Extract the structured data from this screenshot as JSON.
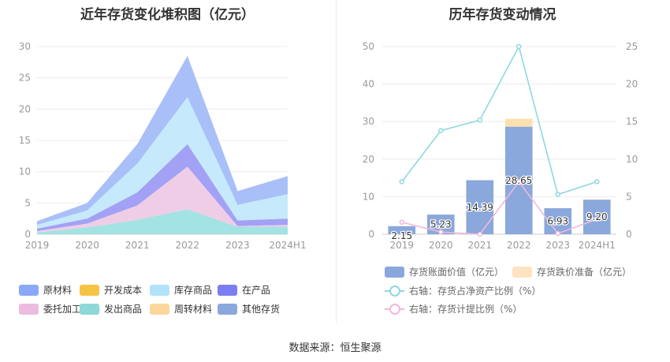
{
  "left_title": "近年存货变化堆积图（亿元）",
  "right_title": "历年存货变动情况",
  "footer": "数据来源：恒生聚源",
  "left_legend": [
    {
      "label": "原材料",
      "color": "#8aa8f5"
    },
    {
      "label": "开发成本",
      "color": "#f6c445"
    },
    {
      "label": "库存商品",
      "color": "#b3e3fa"
    },
    {
      "label": "在产品",
      "color": "#7b7ef0"
    },
    {
      "label": "委托加工材料",
      "color": "#ebbcdf"
    },
    {
      "label": "发出商品",
      "color": "#8fd8d8"
    },
    {
      "label": "周转材料",
      "color": "#fcd79b"
    },
    {
      "label": "其他存货",
      "color": "#8aa8dc"
    }
  ],
  "right_legend": [
    {
      "label": "存货账面价值（亿元）",
      "color": "#8aa8dc",
      "kind": "box"
    },
    {
      "label": "存货跌价准备（亿元）",
      "color": "#fde3c1",
      "kind": "box"
    },
    {
      "label": "右轴：存货占净资产比例（%）",
      "color": "#8fd8e0",
      "kind": "line"
    },
    {
      "label": "右轴：存货计提比例（%）",
      "color": "#f0b8dc",
      "kind": "line"
    }
  ],
  "chart_data": [
    {
      "type": "area",
      "stacked": true,
      "title": "近年存货变化堆积图（亿元）",
      "x": [
        "2019",
        "2020",
        "2021",
        "2022",
        "2023",
        "2024H1"
      ],
      "ylim": [
        0,
        30
      ],
      "yticks": [
        0,
        5,
        10,
        15,
        20,
        25,
        30
      ],
      "grid": true,
      "legend_position": "bottom",
      "series": [
        {
          "name": "发出商品",
          "color": "#a3e3e3",
          "values": [
            0.3,
            1.1,
            2.3,
            4.0,
            1.2,
            1.2
          ]
        },
        {
          "name": "委托加工材料",
          "color": "#f0cde6",
          "values": [
            0.2,
            0.6,
            2.3,
            6.8,
            0.1,
            0.3
          ]
        },
        {
          "name": "在产品",
          "color": "#a3a1f5",
          "values": [
            0.4,
            0.8,
            2.1,
            3.6,
            0.9,
            1.0
          ]
        },
        {
          "name": "库存商品",
          "color": "#c6e9fb",
          "values": [
            0.6,
            1.3,
            4.6,
            7.5,
            2.5,
            3.9
          ]
        },
        {
          "name": "原材料",
          "color": "#a9bff8",
          "values": [
            0.6,
            1.2,
            3.1,
            6.6,
            2.2,
            2.9
          ]
        }
      ]
    },
    {
      "type": "bar",
      "title": "历年存货变动情况",
      "categories": [
        "2019",
        "2020",
        "2021",
        "2022",
        "2023",
        "2024H1"
      ],
      "ylim": [
        0,
        50
      ],
      "yticks": [
        0,
        10,
        20,
        30,
        40,
        50
      ],
      "y2lim": [
        0,
        25
      ],
      "y2ticks": [
        0,
        5,
        10,
        15,
        20,
        25
      ],
      "legend_position": "bottom",
      "series": [
        {
          "name": "存货账面价值（亿元）",
          "type": "bar",
          "color": "#8aa8dc",
          "values": [
            2.15,
            5.23,
            14.39,
            28.65,
            6.93,
            9.2
          ],
          "labels": [
            "2.15",
            "5.23",
            "14.39",
            "28.65",
            "6.93",
            "9.20"
          ]
        },
        {
          "name": "存货跌价准备（亿元）",
          "type": "bar",
          "color": "#fde0b0",
          "values": [
            0.0,
            0.0,
            0.0,
            2.1,
            0.0,
            0.1
          ]
        },
        {
          "name": "右轴：存货占净资产比例（%）",
          "type": "line",
          "axis": "right",
          "color": "#8fd8e0",
          "values": [
            7.0,
            13.8,
            15.2,
            25.0,
            5.3,
            7.0
          ]
        },
        {
          "name": "右轴：存货计提比例（%）",
          "type": "line",
          "axis": "right",
          "color": "#f0b8dc",
          "values": [
            1.6,
            0.3,
            0.0,
            7.0,
            0.1,
            2.0
          ]
        }
      ]
    }
  ]
}
